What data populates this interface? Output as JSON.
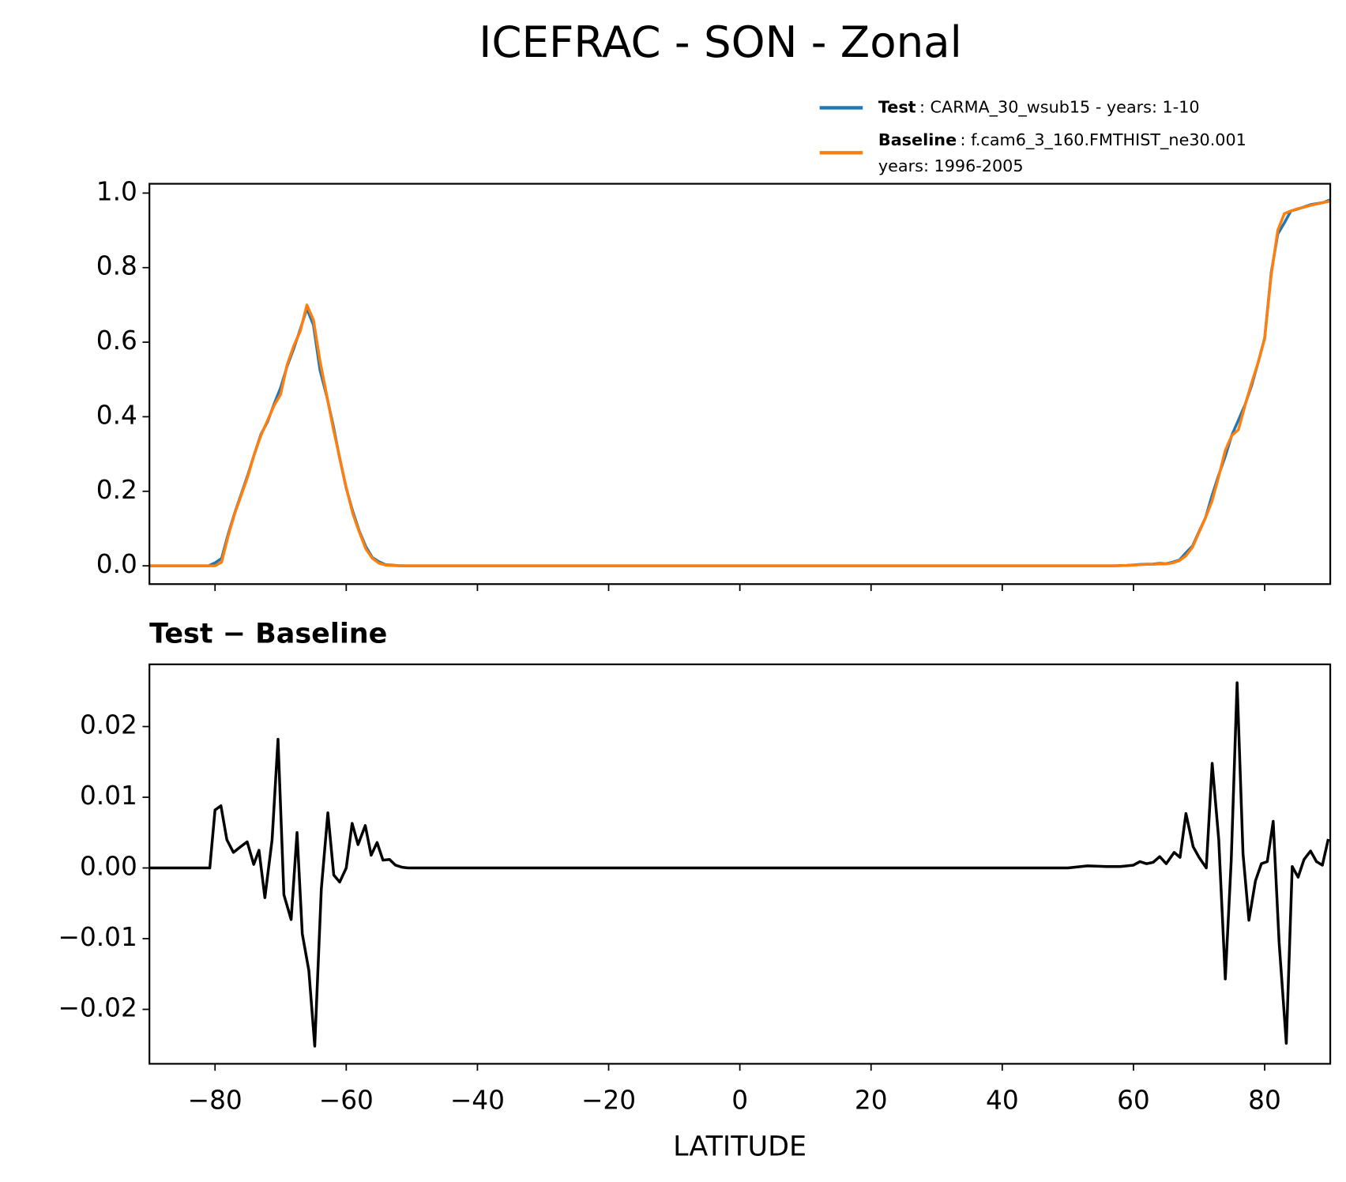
{
  "title": "ICEFRAC - SON - Zonal",
  "chart_data": [
    {
      "type": "line",
      "x": [
        -90,
        -89,
        -88,
        -87,
        -86,
        -85,
        -84,
        -83,
        -82,
        -81,
        -80,
        -79,
        -78,
        -77,
        -76,
        -75,
        -74,
        -73,
        -72,
        -71,
        -70,
        -69,
        -68,
        -67,
        -66,
        -65,
        -64,
        -63,
        -62,
        -61,
        -60,
        -59,
        -58,
        -57,
        -56,
        -55,
        -54,
        -53,
        -52,
        -51,
        -50,
        -40,
        -30,
        -20,
        -10,
        0,
        10,
        20,
        30,
        40,
        50,
        51,
        52,
        53,
        54,
        55,
        56,
        57,
        58,
        59,
        60,
        61,
        62,
        63,
        64,
        65,
        66,
        67,
        68,
        69,
        70,
        71,
        72,
        73,
        74,
        75,
        76,
        77,
        78,
        79,
        80,
        81,
        82,
        83,
        84,
        85,
        86,
        87,
        88,
        89,
        90
      ],
      "series": [
        {
          "name": "Test",
          "label": [
            ": CARMA_30_wsub15 - years: 1-10"
          ],
          "color": "#1f77b4",
          "values": [
            0,
            0,
            0,
            0,
            0,
            0,
            0,
            0,
            0,
            0,
            0.008,
            0.02,
            0.085,
            0.142,
            0.193,
            0.244,
            0.3,
            0.353,
            0.386,
            0.434,
            0.478,
            0.536,
            0.583,
            0.635,
            0.69,
            0.646,
            0.525,
            0.457,
            0.378,
            0.289,
            0.208,
            0.146,
            0.093,
            0.051,
            0.022,
            0.011,
            0.003,
            0.002,
            0.0004,
            0.0001,
            0,
            0,
            0,
            0,
            0,
            0,
            0,
            0,
            0,
            0,
            0,
            0,
            0,
            0,
            0,
            0,
            0,
            0,
            0.0007,
            0.0012,
            0.0024,
            0.0039,
            0.0046,
            0.0048,
            0.0066,
            0.0056,
            0.01,
            0.0155,
            0.035,
            0.053,
            0.092,
            0.13,
            0.19,
            0.244,
            0.294,
            0.351,
            0.391,
            0.432,
            0.483,
            0.545,
            0.611,
            0.787,
            0.89,
            0.92,
            0.952,
            0.957,
            0.963,
            0.969,
            0.972,
            0.975,
            0.982
          ]
        },
        {
          "name": "Baseline",
          "label": [
            ": f.cam6_3_160.FMTHIST_ne30.001",
            "years: 1996-2005"
          ],
          "color": "#ff7f0e",
          "values": [
            0,
            0,
            0,
            0,
            0,
            0,
            0,
            0,
            0,
            0,
            0,
            0.01,
            0.08,
            0.14,
            0.19,
            0.24,
            0.3,
            0.35,
            0.39,
            0.43,
            0.46,
            0.54,
            0.59,
            0.63,
            0.7,
            0.66,
            0.55,
            0.46,
            0.37,
            0.29,
            0.21,
            0.14,
            0.09,
            0.045,
            0.02,
            0.007,
            0.002,
            0.001,
            0,
            0,
            0,
            0,
            0,
            0,
            0,
            0,
            0,
            0,
            0,
            0,
            0,
            0,
            0,
            0,
            0,
            0,
            0,
            0,
            0.0005,
            0.001,
            0.002,
            0.003,
            0.004,
            0.004,
            0.005,
            0.005,
            0.008,
            0.014,
            0.027,
            0.05,
            0.09,
            0.13,
            0.175,
            0.24,
            0.31,
            0.35,
            0.365,
            0.43,
            0.49,
            0.545,
            0.61,
            0.78,
            0.9,
            0.945,
            0.952,
            0.958,
            0.962,
            0.967,
            0.971,
            0.975,
            0.978
          ]
        }
      ],
      "xlim": [
        -90,
        90
      ],
      "xticks": [
        -80,
        -60,
        -40,
        -20,
        0,
        20,
        40,
        60,
        80
      ],
      "ylim": [
        -0.049,
        1.025
      ],
      "yticks": [
        {
          "value": 0,
          "label": "0.0"
        },
        0.2,
        0.4,
        0.6,
        0.8,
        {
          "value": 1,
          "label": "1.0"
        }
      ],
      "legend": "upper right",
      "grid": false
    },
    {
      "type": "line",
      "title": "Test − Baseline",
      "xlabel": "LATITUDE",
      "x": [
        -90,
        -80.8,
        -80,
        -79.1,
        -78.2,
        -77.2,
        -76.1,
        -75.1,
        -74.1,
        -73.3,
        -72.4,
        -71.3,
        -70.4,
        -69.5,
        -68.4,
        -67.5,
        -66.7,
        -65.7,
        -64.8,
        -63.8,
        -62.8,
        -61.9,
        -61,
        -60,
        -59.1,
        -58.2,
        -57.1,
        -56.2,
        -55.3,
        -54.4,
        -53.4,
        -52.5,
        -51.5,
        -50.6,
        0,
        50,
        53,
        56,
        58,
        60,
        61,
        62,
        63,
        64,
        65,
        66.2,
        67.1,
        68,
        69.1,
        70,
        71.1,
        72,
        73,
        74,
        74.9,
        75.8,
        76.7,
        77.6,
        78.6,
        79.5,
        80.4,
        81.3,
        82.2,
        83.3,
        84.2,
        85.1,
        86,
        87,
        87.9,
        88.8,
        89.7
      ],
      "series": [
        {
          "color": "#000000",
          "values": [
            0,
            0,
            0.0082,
            0.0088,
            0.004,
            0.0022,
            0.003,
            0.0037,
            0.0005,
            0.0025,
            -0.0042,
            0.004,
            0.0182,
            -0.0038,
            -0.0073,
            0.005,
            -0.0093,
            -0.0145,
            -0.0252,
            -0.003,
            0.0078,
            -0.001,
            -0.002,
            0,
            0.0063,
            0.0033,
            0.006,
            0.0018,
            0.0036,
            0.0011,
            0.0012,
            0.0004,
            0.0001,
            0,
            0,
            0,
            0.0003,
            0.0002,
            0.0002,
            0.0004,
            0.0009,
            0.0006,
            0.0008,
            0.0016,
            0.0006,
            0.0022,
            0.0015,
            0.0077,
            0.003,
            0.0015,
            0,
            0.0148,
            0.004,
            -0.0157,
            0.001,
            0.0262,
            0.002,
            -0.0074,
            -0.0018,
            0.0006,
            0.0009,
            0.0066,
            -0.0105,
            -0.0248,
            0.0002,
            -0.0013,
            0.0012,
            0.0024,
            0.0009,
            0.0004,
            0.0041
          ]
        }
      ],
      "xlim": [
        -90,
        90
      ],
      "xticks": [
        {
          "value": -80,
          "label": "−80"
        },
        {
          "value": -60,
          "label": "−60"
        },
        {
          "value": -40,
          "label": "−40"
        },
        {
          "value": -20,
          "label": "−20"
        },
        0,
        20,
        40,
        60,
        80
      ],
      "ylim": [
        -0.0277,
        0.0288
      ],
      "yticks": [
        {
          "value": -0.02,
          "label": "−0.02"
        },
        {
          "value": -0.01,
          "label": "−0.01"
        },
        {
          "value": 0,
          "label": "0.00"
        },
        0.01,
        0.02
      ],
      "grid": false
    }
  ]
}
